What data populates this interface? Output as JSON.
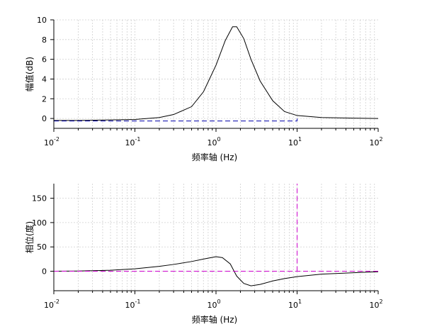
{
  "chart_data": [
    {
      "type": "line",
      "xscale": "log",
      "xlim": [
        0.01,
        100
      ],
      "ylim": [
        -1,
        10
      ],
      "xlabel": "频率轴 (Hz)",
      "ylabel": "幅值(dB)",
      "x_ticks": [
        0.01,
        0.1,
        1,
        10,
        100
      ],
      "x_tick_labels": [
        {
          "base": "10",
          "exp": "-2"
        },
        {
          "base": "10",
          "exp": "-1"
        },
        {
          "base": "10",
          "exp": "0"
        },
        {
          "base": "10",
          "exp": "1"
        },
        {
          "base": "10",
          "exp": "2"
        }
      ],
      "y_ticks": [
        0,
        2,
        4,
        6,
        8,
        10
      ],
      "y_tick_labels": [
        "0",
        "2",
        "4",
        "6",
        "8",
        "10"
      ],
      "grid": true,
      "series": [
        {
          "color": "#000000",
          "style": "solid",
          "x": [
            0.01,
            0.02,
            0.05,
            0.1,
            0.2,
            0.3,
            0.5,
            0.7,
            1.0,
            1.3,
            1.6,
            1.8,
            2.2,
            2.7,
            3.5,
            5,
            7,
            10,
            20,
            50,
            100
          ],
          "y": [
            -0.2,
            -0.2,
            -0.15,
            -0.1,
            0.1,
            0.4,
            1.2,
            2.7,
            5.4,
            7.9,
            9.3,
            9.3,
            8.1,
            6.0,
            3.8,
            1.8,
            0.7,
            0.3,
            0.1,
            0.03,
            0.0
          ]
        },
        {
          "color": "#0000aa",
          "style": "dashed",
          "x": [
            0.01,
            10,
            10
          ],
          "y": [
            -0.25,
            -0.25,
            0
          ]
        }
      ]
    },
    {
      "type": "line",
      "xscale": "log",
      "xlim": [
        0.01,
        100
      ],
      "ylim": [
        -40,
        180
      ],
      "xlabel": "频率轴 (Hz)",
      "ylabel": "相位(度)",
      "x_ticks": [
        0.01,
        0.1,
        1,
        10,
        100
      ],
      "x_tick_labels": [
        {
          "base": "10",
          "exp": "-2"
        },
        {
          "base": "10",
          "exp": "-1"
        },
        {
          "base": "10",
          "exp": "0"
        },
        {
          "base": "10",
          "exp": "1"
        },
        {
          "base": "10",
          "exp": "2"
        }
      ],
      "y_ticks": [
        0,
        50,
        100,
        150
      ],
      "y_tick_labels": [
        "0",
        "50",
        "100",
        "150"
      ],
      "grid": true,
      "series": [
        {
          "color": "#000000",
          "style": "solid",
          "x": [
            0.01,
            0.02,
            0.05,
            0.1,
            0.2,
            0.3,
            0.5,
            0.7,
            1.0,
            1.2,
            1.5,
            1.8,
            2.2,
            2.7,
            3.5,
            5,
            7,
            10,
            20,
            50,
            100
          ],
          "y": [
            0,
            0.5,
            2,
            5,
            10,
            14,
            20,
            25,
            30,
            28,
            15,
            -10,
            -25,
            -30,
            -27,
            -20,
            -15,
            -11,
            -6,
            -3,
            -1
          ]
        },
        {
          "color": "#cc00cc",
          "style": "dashed",
          "x": [
            0.01,
            100
          ],
          "y": [
            0,
            0
          ]
        },
        {
          "color": "#cc00cc",
          "style": "dashed",
          "x": [
            10,
            10
          ],
          "y": [
            0,
            180
          ]
        }
      ]
    }
  ]
}
